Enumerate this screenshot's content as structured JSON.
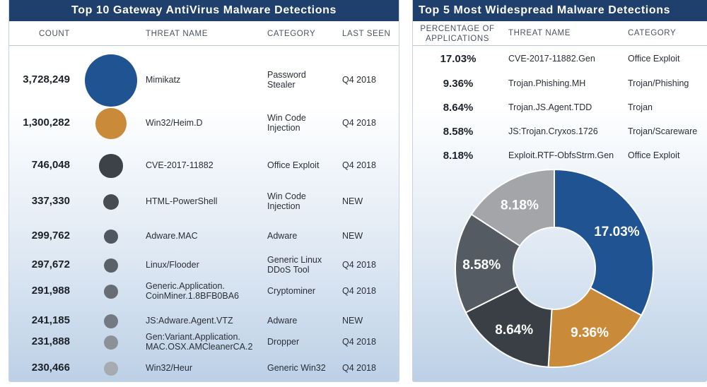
{
  "left": {
    "title": "Top 10 Gateway AntiVirus Malware Detections",
    "headers": {
      "count": "COUNT",
      "threat": "THREAT NAME",
      "category": "CATEGORY",
      "last_seen": "LAST SEEN"
    },
    "rows": [
      {
        "count": "3,728,249",
        "threat": "Mimikatz",
        "category": "Password\nStealer",
        "last_seen": "Q4 2018"
      },
      {
        "count": "1,300,282",
        "threat": "Win32/Heim.D",
        "category": "Win Code\nInjection",
        "last_seen": "Q4 2018"
      },
      {
        "count": "746,048",
        "threat": "CVE-2017-11882",
        "category": "Office Exploit",
        "last_seen": "Q4 2018"
      },
      {
        "count": "337,330",
        "threat": "HTML-PowerShell",
        "category": "Win Code\nInjection",
        "last_seen": "NEW"
      },
      {
        "count": "299,762",
        "threat": "Adware.MAC",
        "category": "Adware",
        "last_seen": "NEW"
      },
      {
        "count": "297,672",
        "threat": "Linux/Flooder",
        "category": "Generic Linux\nDDoS Tool",
        "last_seen": "Q4 2018"
      },
      {
        "count": "291,988",
        "threat": "Generic.Application.\nCoinMiner.1.8BFB0BA6",
        "category": "Cryptominer",
        "last_seen": "Q4 2018"
      },
      {
        "count": "241,185",
        "threat": "JS:Adware.Agent.VTZ",
        "category": "Adware",
        "last_seen": "NEW"
      },
      {
        "count": "231,888",
        "threat": "Gen:Variant.Application.\nMAC.OSX.AMCleanerCA.2",
        "category": "Dropper",
        "last_seen": "Q4 2018"
      },
      {
        "count": "230,466",
        "threat": "Win32/Heur",
        "category": "Generic Win32",
        "last_seen": "Q4 2018"
      }
    ],
    "bubble_colors": [
      "#1f5391",
      "#c98a3a",
      "#3d4248",
      "#474c53",
      "#515760",
      "#5b6169",
      "#676d74",
      "#747a81",
      "#8c9198",
      "#a6abb0"
    ]
  },
  "right": {
    "title": "Top 5 Most Widespread Malware Detections",
    "headers": {
      "pct": "PERCENTAGE OF\nAPPLICATIONS",
      "threat": "THREAT NAME",
      "category": "CATEGORY"
    },
    "rows": [
      {
        "pct": "17.03%",
        "threat": "CVE-2017-11882.Gen",
        "category": "Office Exploit"
      },
      {
        "pct": "9.36%",
        "threat": "Trojan.Phishing.MH",
        "category": "Trojan/Phishing"
      },
      {
        "pct": "8.64%",
        "threat": "Trojan.JS.Agent.TDD",
        "category": "Trojan"
      },
      {
        "pct": "8.58%",
        "threat": "JS:Trojan.Cryxos.1726",
        "category": "Trojan/Scareware"
      },
      {
        "pct": "8.18%",
        "threat": "Exploit.RTF-ObfsStrm.Gen",
        "category": "Office Exploit"
      }
    ]
  },
  "chart_data": [
    {
      "type": "bubble",
      "title": "Top 10 Gateway AntiVirus Malware Detections",
      "categories": [
        "Mimikatz",
        "Win32/Heim.D",
        "CVE-2017-11882",
        "HTML-PowerShell",
        "Adware.MAC",
        "Linux/Flooder",
        "Generic.Application.CoinMiner.1.8BFB0BA6",
        "JS:Adware.Agent.VTZ",
        "Gen:Variant.Application.MAC.OSX.AMCleanerCA.2",
        "Win32/Heur"
      ],
      "values": [
        3728249,
        1300282,
        746048,
        337330,
        299762,
        297672,
        291988,
        241185,
        231888,
        230466
      ]
    },
    {
      "type": "pie",
      "title": "Top 5 Most Widespread Malware Detections",
      "categories": [
        "CVE-2017-11882.Gen",
        "Trojan.Phishing.MH",
        "Trojan.JS.Agent.TDD",
        "JS:Trojan.Cryxos.1726",
        "Exploit.RTF-ObfsStrm.Gen"
      ],
      "values": [
        17.03,
        9.36,
        8.64,
        8.58,
        8.18
      ],
      "labels": [
        "17.03%",
        "9.36%",
        "8.64%",
        "8.58%",
        "8.18%"
      ],
      "colors": [
        "#1f5391",
        "#c98a3a",
        "#3a3f45",
        "#555b62",
        "#a3a5a8"
      ],
      "donut": true
    }
  ]
}
